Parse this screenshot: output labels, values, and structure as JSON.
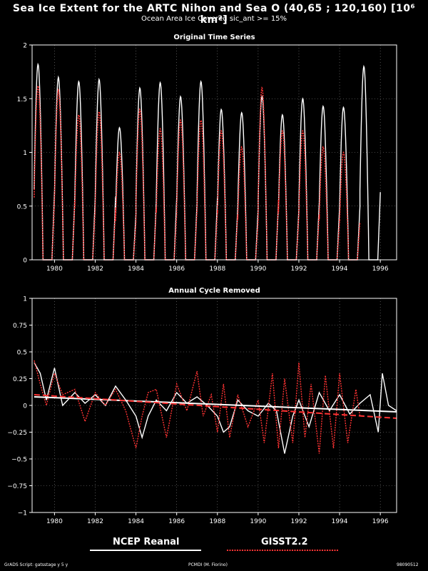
{
  "title": "Sea Ice Extent for the ARTC Nihon and Sea O (40,65 ; 120,160) [10⁶ km²]",
  "subtitle": "Ocean Area Ice Covered sic_ant >= 15%",
  "footer": {
    "left": "GrADS Script: gatsstage y 5 y",
    "center": "PCMDI (M. Fiorino)",
    "right": "98090512"
  },
  "legend": [
    {
      "label": "NCEP Reanal",
      "color": "#ffffff",
      "style": "solid"
    },
    {
      "label": "GISST2.2",
      "color": "#ff3333",
      "style": "dashed"
    }
  ],
  "chart_data": [
    {
      "type": "line",
      "title": "Original Time Series",
      "xlim": [
        1978.9,
        1996.8
      ],
      "ylim": [
        0,
        2
      ],
      "x_ticks": [
        "1980",
        "1982",
        "1984",
        "1986",
        "1988",
        "1990",
        "1992",
        "1994",
        "1996"
      ],
      "y_ticks": [
        "0",
        "0.5",
        "1",
        "1.5",
        "2"
      ],
      "grid": true,
      "series": [
        {
          "name": "NCEP Reanal",
          "color": "#ffffff",
          "annual_peaks": [
            1.82,
            1.7,
            1.66,
            1.68,
            1.23,
            1.6,
            1.65,
            1.52,
            1.66,
            1.4,
            1.37,
            1.52,
            1.35,
            1.5,
            1.43,
            1.42,
            1.8
          ]
        },
        {
          "name": "GISST2.2",
          "color": "#ff3333",
          "annual_peaks": [
            1.62,
            1.58,
            1.35,
            1.38,
            1.0,
            1.4,
            1.22,
            1.3,
            1.3,
            1.2,
            1.05,
            1.6,
            1.2,
            1.2,
            1.05,
            1.0,
            0.0
          ]
        }
      ],
      "peak_years": [
        1979,
        1980,
        1981,
        1982,
        1983,
        1984,
        1985,
        1986,
        1987,
        1988,
        1989,
        1990,
        1991,
        1992,
        1993,
        1994,
        1995
      ],
      "notes": "seasonal cycle: winter max ~Feb, summer min ~0 from Jun-Oct; GISST ends late 1995"
    },
    {
      "type": "line",
      "title": "Annual Cycle Removed",
      "xlim": [
        1978.9,
        1996.8
      ],
      "ylim": [
        -1,
        1
      ],
      "x_ticks": [
        "1980",
        "1982",
        "1984",
        "1986",
        "1988",
        "1990",
        "1992",
        "1994",
        "1996"
      ],
      "y_ticks": [
        "−1",
        "−0.75",
        "−0.5",
        "−0.25",
        "0",
        "0.25",
        "0.5",
        "0.75",
        "1"
      ],
      "grid": true,
      "series": [
        {
          "name": "NCEP Reanal",
          "color": "#ffffff",
          "x": [
            1979.0,
            1979.3,
            1979.6,
            1980.0,
            1980.4,
            1981.0,
            1981.5,
            1982.0,
            1982.5,
            1983.0,
            1983.5,
            1984.0,
            1984.3,
            1984.6,
            1985.0,
            1985.5,
            1986.0,
            1986.5,
            1987.0,
            1987.5,
            1988.0,
            1988.3,
            1988.6,
            1989.0,
            1989.5,
            1990.0,
            1990.5,
            1990.9,
            1991.3,
            1991.7,
            1992.0,
            1992.5,
            1993.0,
            1993.5,
            1994.0,
            1994.5,
            1995.0,
            1995.5,
            1995.9,
            1996.1,
            1996.4,
            1996.8
          ],
          "y": [
            0.4,
            0.3,
            0.05,
            0.35,
            0.0,
            0.12,
            0.02,
            0.1,
            0.0,
            0.18,
            0.05,
            -0.1,
            -0.3,
            -0.1,
            0.05,
            -0.05,
            0.12,
            0.02,
            0.08,
            0.0,
            -0.1,
            -0.25,
            -0.2,
            0.05,
            -0.05,
            -0.1,
            0.02,
            -0.05,
            -0.45,
            -0.1,
            0.05,
            -0.2,
            0.12,
            -0.05,
            0.1,
            -0.08,
            0.02,
            0.1,
            -0.25,
            0.3,
            0.0,
            -0.05
          ]
        },
        {
          "name": "GISST2.2",
          "color": "#ff3333",
          "x": [
            1979.0,
            1979.3,
            1979.6,
            1980.0,
            1980.4,
            1981.0,
            1981.5,
            1982.0,
            1982.5,
            1983.0,
            1983.5,
            1984.0,
            1984.3,
            1984.6,
            1985.0,
            1985.5,
            1986.0,
            1986.5,
            1987.0,
            1987.3,
            1987.7,
            1988.0,
            1988.3,
            1988.6,
            1989.0,
            1989.5,
            1990.0,
            1990.3,
            1990.7,
            1991.0,
            1991.3,
            1991.7,
            1992.0,
            1992.3,
            1992.6,
            1993.0,
            1993.3,
            1993.7,
            1994.0,
            1994.4,
            1994.8,
            1995.0
          ],
          "y": [
            0.42,
            0.2,
            0.0,
            0.3,
            0.1,
            0.15,
            -0.15,
            0.12,
            0.0,
            0.15,
            -0.05,
            -0.4,
            -0.1,
            0.12,
            0.15,
            -0.3,
            0.2,
            -0.05,
            0.32,
            -0.1,
            0.1,
            -0.25,
            0.2,
            -0.3,
            0.1,
            -0.2,
            0.05,
            -0.35,
            0.3,
            -0.4,
            0.25,
            -0.35,
            0.4,
            -0.3,
            0.2,
            -0.45,
            0.28,
            -0.4,
            0.3,
            -0.35,
            0.15,
            -0.1
          ]
        },
        {
          "name": "NCEP Reanal trend",
          "color": "#ffffff",
          "x": [
            1979.0,
            1996.8
          ],
          "y": [
            0.08,
            -0.06
          ]
        },
        {
          "name": "GISST2.2 trend",
          "color": "#ff3333",
          "x": [
            1979.0,
            1996.8
          ],
          "y": [
            0.1,
            -0.12
          ]
        }
      ]
    }
  ]
}
